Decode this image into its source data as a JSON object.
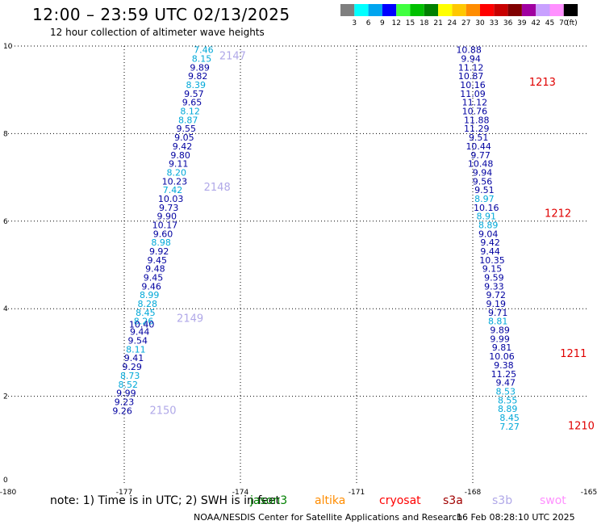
{
  "header": {
    "title": "12:00 – 23:59 UTC 02/13/2025",
    "subtitle": "12 hour collection of altimeter wave heights"
  },
  "legend": {
    "unit_label": "(ft)",
    "bins": [
      {
        "label": "3",
        "color": "#7f7f7f"
      },
      {
        "label": "6",
        "color": "#00ffff"
      },
      {
        "label": "9",
        "color": "#00a5ef"
      },
      {
        "label": "12",
        "color": "#0000ff"
      },
      {
        "label": "15",
        "color": "#40ff40"
      },
      {
        "label": "18",
        "color": "#00c000"
      },
      {
        "label": "21",
        "color": "#008000"
      },
      {
        "label": "24",
        "color": "#ffff00"
      },
      {
        "label": "27",
        "color": "#ffc800"
      },
      {
        "label": "30",
        "color": "#ff8c00"
      },
      {
        "label": "33",
        "color": "#ff0000"
      },
      {
        "label": "36",
        "color": "#c80000"
      },
      {
        "label": "39",
        "color": "#800000"
      },
      {
        "label": "42",
        "color": "#a000a0"
      },
      {
        "label": "45",
        "color": "#c8a0ff"
      },
      {
        "label": "70",
        "color": "#ff90ff"
      },
      {
        "label": "",
        "color": "#000000"
      }
    ]
  },
  "chart_data": {
    "type": "scatter",
    "xlim": [
      -180,
      -165
    ],
    "ylim": [
      0,
      10
    ],
    "x_ticks": [
      "-180",
      "-177",
      "-174",
      "-171",
      "-168",
      "-165"
    ],
    "y_ticks": [
      "0",
      "2",
      "4",
      "6",
      "8",
      "10"
    ],
    "grid": true,
    "colors": {
      "navy": "#0000a0",
      "cyan": "#00a8d8",
      "lavender": "#b0a8e8",
      "red": "#e00000"
    },
    "left_track": [
      {
        "x": -174.95,
        "y": 9.84,
        "v": "7.46",
        "c": "cyan"
      },
      {
        "x": -175.0,
        "y": 9.64,
        "v": "8.15",
        "c": "cyan"
      },
      {
        "x": -175.05,
        "y": 9.44,
        "v": "9.89",
        "c": "navy"
      },
      {
        "x": -175.1,
        "y": 9.24,
        "v": "9.82",
        "c": "navy"
      },
      {
        "x": -175.15,
        "y": 9.04,
        "v": "8.39",
        "c": "cyan"
      },
      {
        "x": -175.2,
        "y": 8.84,
        "v": "9.57",
        "c": "navy"
      },
      {
        "x": -175.25,
        "y": 8.64,
        "v": "9.65",
        "c": "navy"
      },
      {
        "x": -175.3,
        "y": 8.44,
        "v": "8.12",
        "c": "cyan"
      },
      {
        "x": -175.35,
        "y": 8.24,
        "v": "8.87",
        "c": "cyan"
      },
      {
        "x": -175.4,
        "y": 8.04,
        "v": "9.55",
        "c": "navy"
      },
      {
        "x": -175.45,
        "y": 7.84,
        "v": "9.05",
        "c": "navy"
      },
      {
        "x": -175.5,
        "y": 7.64,
        "v": "9.42",
        "c": "navy"
      },
      {
        "x": -175.55,
        "y": 7.44,
        "v": "9.80",
        "c": "navy"
      },
      {
        "x": -175.6,
        "y": 7.24,
        "v": "9.11",
        "c": "navy"
      },
      {
        "x": -175.65,
        "y": 7.04,
        "v": "8.20",
        "c": "cyan"
      },
      {
        "x": -175.7,
        "y": 6.84,
        "v": "10.23",
        "c": "navy"
      },
      {
        "x": -175.75,
        "y": 6.64,
        "v": "7.42",
        "c": "cyan"
      },
      {
        "x": -175.8,
        "y": 6.44,
        "v": "10.03",
        "c": "navy"
      },
      {
        "x": -175.85,
        "y": 6.24,
        "v": "9.73",
        "c": "navy"
      },
      {
        "x": -175.9,
        "y": 6.04,
        "v": "9.90",
        "c": "navy"
      },
      {
        "x": -175.95,
        "y": 5.84,
        "v": "10.17",
        "c": "navy"
      },
      {
        "x": -176.0,
        "y": 5.64,
        "v": "9.60",
        "c": "navy"
      },
      {
        "x": -176.05,
        "y": 5.44,
        "v": "8.98",
        "c": "cyan"
      },
      {
        "x": -176.1,
        "y": 5.24,
        "v": "9.92",
        "c": "navy"
      },
      {
        "x": -176.15,
        "y": 5.04,
        "v": "9.45",
        "c": "navy"
      },
      {
        "x": -176.2,
        "y": 4.84,
        "v": "9.48",
        "c": "navy"
      },
      {
        "x": -176.25,
        "y": 4.64,
        "v": "9.45",
        "c": "navy"
      },
      {
        "x": -176.3,
        "y": 4.44,
        "v": "9.46",
        "c": "navy"
      },
      {
        "x": -176.35,
        "y": 4.24,
        "v": "8.99",
        "c": "cyan"
      },
      {
        "x": -176.4,
        "y": 4.04,
        "v": "8.28",
        "c": "cyan"
      },
      {
        "x": -176.45,
        "y": 3.84,
        "v": "8.45",
        "c": "cyan"
      },
      {
        "x": -176.5,
        "y": 3.64,
        "v": "8.26",
        "c": "cyan"
      },
      {
        "x": -176.55,
        "y": 3.57,
        "v": "10.40",
        "c": "navy"
      },
      {
        "x": -176.6,
        "y": 3.4,
        "v": "9.44",
        "c": "navy"
      },
      {
        "x": -176.65,
        "y": 3.2,
        "v": "9.54",
        "c": "navy"
      },
      {
        "x": -176.7,
        "y": 3.0,
        "v": "8.11",
        "c": "cyan"
      },
      {
        "x": -176.75,
        "y": 2.8,
        "v": "9.41",
        "c": "navy"
      },
      {
        "x": -176.8,
        "y": 2.6,
        "v": "9.29",
        "c": "navy"
      },
      {
        "x": -176.85,
        "y": 2.4,
        "v": "8.73",
        "c": "cyan"
      },
      {
        "x": -176.9,
        "y": 2.2,
        "v": "8.52",
        "c": "cyan"
      },
      {
        "x": -176.95,
        "y": 2.0,
        "v": "9.99",
        "c": "navy"
      },
      {
        "x": -177.0,
        "y": 1.8,
        "v": "9.23",
        "c": "navy"
      },
      {
        "x": -177.05,
        "y": 1.6,
        "v": "9.26",
        "c": "navy"
      }
    ],
    "right_track": [
      {
        "x": -168.1,
        "y": 9.84,
        "v": "10.88",
        "c": "navy"
      },
      {
        "x": -168.05,
        "y": 9.64,
        "v": "9.94",
        "c": "navy"
      },
      {
        "x": -168.05,
        "y": 9.44,
        "v": "11.12",
        "c": "navy"
      },
      {
        "x": -168.05,
        "y": 9.24,
        "v": "10.87",
        "c": "navy"
      },
      {
        "x": -168.0,
        "y": 9.04,
        "v": "10.16",
        "c": "navy"
      },
      {
        "x": -168.0,
        "y": 8.84,
        "v": "11.09",
        "c": "navy"
      },
      {
        "x": -167.95,
        "y": 8.64,
        "v": "11.12",
        "c": "navy"
      },
      {
        "x": -167.95,
        "y": 8.44,
        "v": "10.76",
        "c": "navy"
      },
      {
        "x": -167.9,
        "y": 8.24,
        "v": "11.88",
        "c": "navy"
      },
      {
        "x": -167.9,
        "y": 8.04,
        "v": "11.29",
        "c": "navy"
      },
      {
        "x": -167.85,
        "y": 7.84,
        "v": "9.51",
        "c": "navy"
      },
      {
        "x": -167.85,
        "y": 7.64,
        "v": "10.44",
        "c": "navy"
      },
      {
        "x": -167.8,
        "y": 7.44,
        "v": "9.77",
        "c": "navy"
      },
      {
        "x": -167.8,
        "y": 7.24,
        "v": "10.48",
        "c": "navy"
      },
      {
        "x": -167.75,
        "y": 7.04,
        "v": "9.94",
        "c": "navy"
      },
      {
        "x": -167.75,
        "y": 6.84,
        "v": "9.56",
        "c": "navy"
      },
      {
        "x": -167.7,
        "y": 6.64,
        "v": "9.51",
        "c": "navy"
      },
      {
        "x": -167.7,
        "y": 6.44,
        "v": "8.97",
        "c": "cyan"
      },
      {
        "x": -167.65,
        "y": 6.24,
        "v": "10.16",
        "c": "navy"
      },
      {
        "x": -167.65,
        "y": 6.04,
        "v": "8.91",
        "c": "cyan"
      },
      {
        "x": -167.6,
        "y": 5.84,
        "v": "8.89",
        "c": "cyan"
      },
      {
        "x": -167.6,
        "y": 5.64,
        "v": "9.04",
        "c": "navy"
      },
      {
        "x": -167.55,
        "y": 5.44,
        "v": "9.42",
        "c": "navy"
      },
      {
        "x": -167.55,
        "y": 5.24,
        "v": "9.44",
        "c": "navy"
      },
      {
        "x": -167.5,
        "y": 5.04,
        "v": "10.35",
        "c": "navy"
      },
      {
        "x": -167.5,
        "y": 4.84,
        "v": "9.15",
        "c": "navy"
      },
      {
        "x": -167.45,
        "y": 4.64,
        "v": "9.59",
        "c": "navy"
      },
      {
        "x": -167.45,
        "y": 4.44,
        "v": "9.33",
        "c": "navy"
      },
      {
        "x": -167.4,
        "y": 4.24,
        "v": "9.72",
        "c": "navy"
      },
      {
        "x": -167.4,
        "y": 4.04,
        "v": "9.19",
        "c": "navy"
      },
      {
        "x": -167.35,
        "y": 3.84,
        "v": "9.71",
        "c": "navy"
      },
      {
        "x": -167.35,
        "y": 3.64,
        "v": "8.81",
        "c": "cyan"
      },
      {
        "x": -167.3,
        "y": 3.44,
        "v": "9.89",
        "c": "navy"
      },
      {
        "x": -167.3,
        "y": 3.24,
        "v": "9.99",
        "c": "navy"
      },
      {
        "x": -167.25,
        "y": 3.04,
        "v": "9.81",
        "c": "navy"
      },
      {
        "x": -167.25,
        "y": 2.84,
        "v": "10.06",
        "c": "navy"
      },
      {
        "x": -167.2,
        "y": 2.64,
        "v": "9.38",
        "c": "navy"
      },
      {
        "x": -167.2,
        "y": 2.44,
        "v": "11.25",
        "c": "navy"
      },
      {
        "x": -167.15,
        "y": 2.24,
        "v": "9.47",
        "c": "navy"
      },
      {
        "x": -167.15,
        "y": 2.04,
        "v": "8.53",
        "c": "cyan"
      },
      {
        "x": -167.1,
        "y": 1.84,
        "v": "8.55",
        "c": "cyan"
      },
      {
        "x": -167.1,
        "y": 1.64,
        "v": "8.89",
        "c": "cyan"
      },
      {
        "x": -167.05,
        "y": 1.44,
        "v": "8.45",
        "c": "cyan"
      },
      {
        "x": -167.05,
        "y": 1.24,
        "v": "7.27",
        "c": "cyan"
      }
    ],
    "time_labels": [
      {
        "x": -174.2,
        "y": 9.7,
        "v": "2147",
        "c": "lavender"
      },
      {
        "x": -174.6,
        "y": 6.7,
        "v": "2148",
        "c": "lavender"
      },
      {
        "x": -175.3,
        "y": 3.7,
        "v": "2149",
        "c": "lavender"
      },
      {
        "x": -176.0,
        "y": 1.6,
        "v": "2150",
        "c": "lavender"
      },
      {
        "x": -166.2,
        "y": 9.1,
        "v": "1213",
        "c": "red"
      },
      {
        "x": -165.8,
        "y": 6.1,
        "v": "1212",
        "c": "red"
      },
      {
        "x": -165.4,
        "y": 2.9,
        "v": "1211",
        "c": "red"
      },
      {
        "x": -165.2,
        "y": 1.25,
        "v": "1210",
        "c": "red"
      }
    ]
  },
  "footer": {
    "note": "note: 1) Time is in UTC; 2) SWH is in feet",
    "satellites": [
      {
        "name": "jason3",
        "color": "#008000"
      },
      {
        "name": "altika",
        "color": "#ff8c00"
      },
      {
        "name": "cryosat",
        "color": "#ff0000"
      },
      {
        "name": "s3a",
        "color": "#a00000"
      },
      {
        "name": "s3b",
        "color": "#b0a8e8"
      },
      {
        "name": "swot",
        "color": "#ff90ff"
      }
    ],
    "credit": "NOAA/NESDIS Center for Satellite Applications and Research",
    "timestamp": "16 Feb 08:28:10 UTC 2025"
  }
}
